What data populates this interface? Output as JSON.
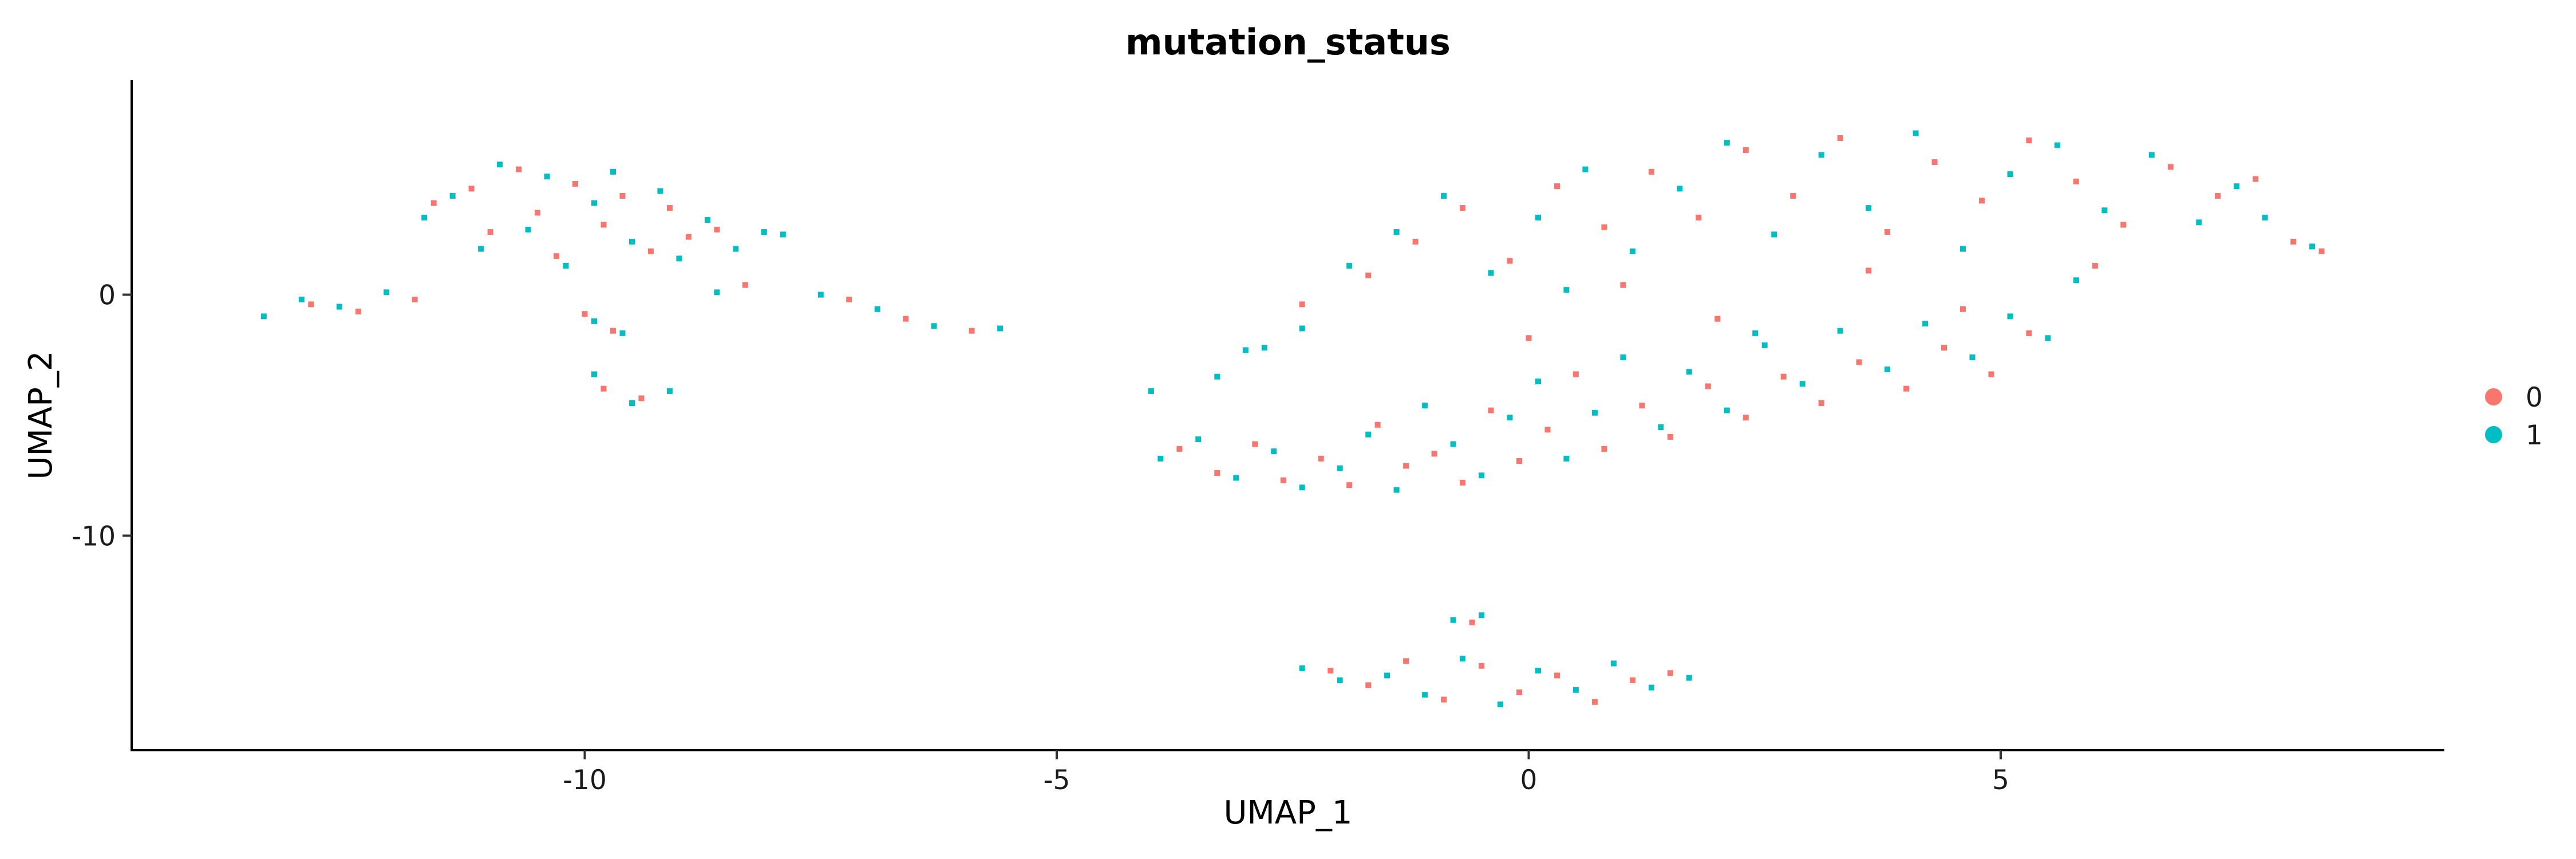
{
  "chart_data": {
    "type": "scatter",
    "title": "mutation_status",
    "xlabel": "UMAP_1",
    "ylabel": "UMAP_2",
    "xlim": [
      -14.8,
      9.7
    ],
    "ylim": [
      -18.9,
      8.9
    ],
    "x_ticks": [
      -10,
      -5,
      0,
      5
    ],
    "x_tick_labels": [
      "-10",
      "-5",
      "0",
      "5"
    ],
    "y_ticks": [
      -10,
      0
    ],
    "y_tick_labels": [
      "-10",
      "0"
    ],
    "grid": false,
    "legend": {
      "placement": "right",
      "entries": [
        {
          "label": "0",
          "color": "#F8766D"
        },
        {
          "label": "1",
          "color": "#00BFC4"
        }
      ]
    },
    "series": [
      {
        "name": "0",
        "color": "#F8766D",
        "points": [
          [
            -12.9,
            -0.4
          ],
          [
            -12.4,
            -0.7
          ],
          [
            -11.8,
            -0.2
          ],
          [
            -11.6,
            3.8
          ],
          [
            -11.2,
            4.4
          ],
          [
            -11.0,
            2.6
          ],
          [
            -10.7,
            5.2
          ],
          [
            -10.5,
            3.4
          ],
          [
            -10.3,
            1.6
          ],
          [
            -10.1,
            4.6
          ],
          [
            -9.8,
            2.9
          ],
          [
            -9.6,
            4.1
          ],
          [
            -9.3,
            1.8
          ],
          [
            -9.1,
            3.6
          ],
          [
            -8.9,
            2.4
          ],
          [
            -8.6,
            2.7
          ],
          [
            -8.3,
            0.4
          ],
          [
            -10.0,
            -0.8
          ],
          [
            -9.7,
            -1.5
          ],
          [
            -9.8,
            -3.9
          ],
          [
            -9.4,
            -4.3
          ],
          [
            -7.2,
            -0.2
          ],
          [
            -6.6,
            -1.0
          ],
          [
            -5.9,
            -1.5
          ],
          [
            -3.7,
            -6.4
          ],
          [
            -3.3,
            -7.4
          ],
          [
            -2.9,
            -6.2
          ],
          [
            -2.6,
            -7.7
          ],
          [
            -2.2,
            -6.8
          ],
          [
            -1.9,
            -7.9
          ],
          [
            -1.6,
            -5.4
          ],
          [
            -1.3,
            -7.1
          ],
          [
            -1.0,
            -6.6
          ],
          [
            -0.7,
            -7.8
          ],
          [
            -0.4,
            -4.8
          ],
          [
            -0.1,
            -6.9
          ],
          [
            0.2,
            -5.6
          ],
          [
            0.5,
            -3.3
          ],
          [
            0.8,
            -6.4
          ],
          [
            1.2,
            -4.6
          ],
          [
            1.5,
            -5.9
          ],
          [
            1.9,
            -3.8
          ],
          [
            2.3,
            -5.1
          ],
          [
            2.7,
            -3.4
          ],
          [
            3.1,
            -4.5
          ],
          [
            3.5,
            -2.8
          ],
          [
            4.0,
            -3.9
          ],
          [
            4.4,
            -2.2
          ],
          [
            4.9,
            -3.3
          ],
          [
            5.3,
            -1.6
          ],
          [
            -1.7,
            0.8
          ],
          [
            -1.2,
            2.2
          ],
          [
            -0.7,
            3.6
          ],
          [
            -0.2,
            1.4
          ],
          [
            0.3,
            4.5
          ],
          [
            0.8,
            2.8
          ],
          [
            1.3,
            5.1
          ],
          [
            1.8,
            3.2
          ],
          [
            2.3,
            6.0
          ],
          [
            2.8,
            4.1
          ],
          [
            3.3,
            6.5
          ],
          [
            3.8,
            2.6
          ],
          [
            4.3,
            5.5
          ],
          [
            4.8,
            3.9
          ],
          [
            5.3,
            6.4
          ],
          [
            5.8,
            4.7
          ],
          [
            6.3,
            2.9
          ],
          [
            6.8,
            5.3
          ],
          [
            7.3,
            4.1
          ],
          [
            7.7,
            4.8
          ],
          [
            8.1,
            2.2
          ],
          [
            8.4,
            1.8
          ],
          [
            -2.1,
            -15.6
          ],
          [
            -1.7,
            -16.2
          ],
          [
            -1.3,
            -15.2
          ],
          [
            -0.9,
            -16.8
          ],
          [
            -0.5,
            -15.4
          ],
          [
            -0.1,
            -16.5
          ],
          [
            0.3,
            -15.8
          ],
          [
            0.7,
            -16.9
          ],
          [
            1.1,
            -16.0
          ],
          [
            1.5,
            -15.7
          ],
          [
            -0.6,
            -13.6
          ],
          [
            2.0,
            -1.0
          ],
          [
            0.0,
            -1.8
          ],
          [
            3.6,
            1.0
          ],
          [
            6.0,
            1.2
          ],
          [
            -2.4,
            -0.4
          ],
          [
            1.0,
            0.4
          ],
          [
            4.6,
            -0.6
          ]
        ]
      },
      {
        "name": "1",
        "color": "#00BFC4",
        "points": [
          [
            -13.4,
            -0.9
          ],
          [
            -13.0,
            -0.2
          ],
          [
            -12.6,
            -0.5
          ],
          [
            -12.1,
            0.1
          ],
          [
            -11.7,
            3.2
          ],
          [
            -11.4,
            4.1
          ],
          [
            -11.1,
            1.9
          ],
          [
            -10.9,
            5.4
          ],
          [
            -10.6,
            2.7
          ],
          [
            -10.4,
            4.9
          ],
          [
            -10.2,
            1.2
          ],
          [
            -9.9,
            3.8
          ],
          [
            -9.7,
            5.1
          ],
          [
            -9.5,
            2.2
          ],
          [
            -9.2,
            4.3
          ],
          [
            -9.0,
            1.5
          ],
          [
            -8.7,
            3.1
          ],
          [
            -8.4,
            1.9
          ],
          [
            -8.1,
            2.6
          ],
          [
            -7.9,
            2.5
          ],
          [
            -8.6,
            0.1
          ],
          [
            -9.9,
            -1.1
          ],
          [
            -9.6,
            -1.6
          ],
          [
            -9.9,
            -3.3
          ],
          [
            -9.5,
            -4.5
          ],
          [
            -9.1,
            -4.0
          ],
          [
            -7.5,
            0.0
          ],
          [
            -6.9,
            -0.6
          ],
          [
            -6.3,
            -1.3
          ],
          [
            -5.6,
            -1.4
          ],
          [
            -3.9,
            -6.8
          ],
          [
            -3.5,
            -6.0
          ],
          [
            -3.1,
            -7.6
          ],
          [
            -2.7,
            -6.5
          ],
          [
            -2.4,
            -8.0
          ],
          [
            -2.0,
            -7.2
          ],
          [
            -1.7,
            -5.8
          ],
          [
            -1.4,
            -8.1
          ],
          [
            -1.1,
            -4.6
          ],
          [
            -0.8,
            -6.2
          ],
          [
            -0.5,
            -7.5
          ],
          [
            -0.2,
            -5.1
          ],
          [
            0.1,
            -3.6
          ],
          [
            0.4,
            -6.8
          ],
          [
            0.7,
            -4.9
          ],
          [
            1.0,
            -2.6
          ],
          [
            1.4,
            -5.5
          ],
          [
            1.7,
            -3.2
          ],
          [
            2.1,
            -4.8
          ],
          [
            2.5,
            -2.1
          ],
          [
            2.9,
            -3.7
          ],
          [
            3.3,
            -1.5
          ],
          [
            3.8,
            -3.1
          ],
          [
            4.2,
            -1.2
          ],
          [
            4.7,
            -2.6
          ],
          [
            5.1,
            -0.9
          ],
          [
            5.5,
            -1.8
          ],
          [
            -2.8,
            -2.2
          ],
          [
            -2.4,
            -1.4
          ],
          [
            -3.3,
            -3.4
          ],
          [
            -1.9,
            1.2
          ],
          [
            -1.4,
            2.6
          ],
          [
            -0.9,
            4.1
          ],
          [
            -0.4,
            0.9
          ],
          [
            0.1,
            3.2
          ],
          [
            0.6,
            5.2
          ],
          [
            1.1,
            1.8
          ],
          [
            1.6,
            4.4
          ],
          [
            2.1,
            6.3
          ],
          [
            2.6,
            2.5
          ],
          [
            3.1,
            5.8
          ],
          [
            3.6,
            3.6
          ],
          [
            4.1,
            6.7
          ],
          [
            4.6,
            1.9
          ],
          [
            5.1,
            5.0
          ],
          [
            5.6,
            6.2
          ],
          [
            6.1,
            3.5
          ],
          [
            6.6,
            5.8
          ],
          [
            7.1,
            3.0
          ],
          [
            7.5,
            4.5
          ],
          [
            7.8,
            3.2
          ],
          [
            8.3,
            2.0
          ],
          [
            -3.0,
            -2.3
          ],
          [
            -2.4,
            -15.5
          ],
          [
            -2.0,
            -16.0
          ],
          [
            -1.5,
            -15.8
          ],
          [
            -1.1,
            -16.6
          ],
          [
            -0.7,
            -15.1
          ],
          [
            -0.3,
            -17.0
          ],
          [
            0.1,
            -15.6
          ],
          [
            0.5,
            -16.4
          ],
          [
            0.9,
            -15.3
          ],
          [
            1.3,
            -16.3
          ],
          [
            1.7,
            -15.9
          ],
          [
            -0.5,
            -13.3
          ],
          [
            -0.8,
            -13.5
          ],
          [
            2.4,
            -1.6
          ],
          [
            5.8,
            0.6
          ],
          [
            -4.0,
            -4.0
          ],
          [
            0.4,
            0.2
          ]
        ]
      }
    ]
  }
}
